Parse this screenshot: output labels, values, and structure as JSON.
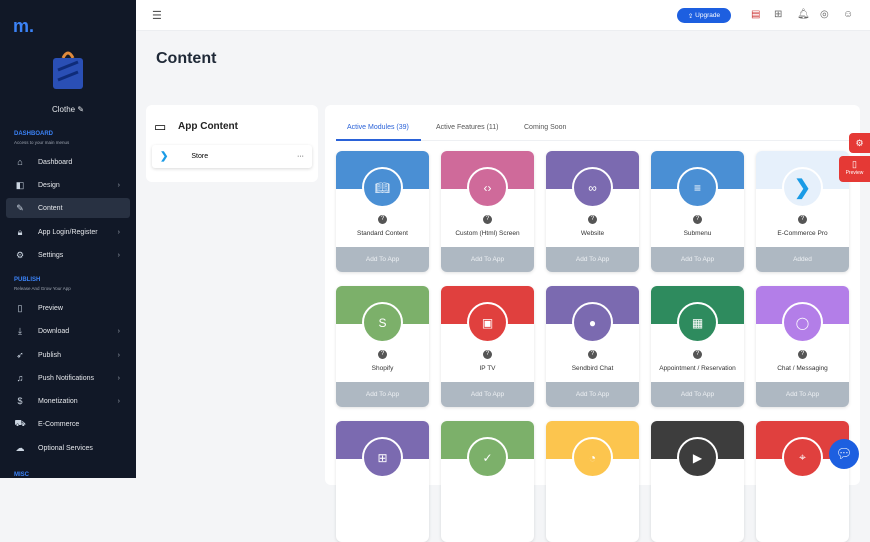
{
  "sidebar": {
    "app_name": "Clothe",
    "sections": [
      {
        "title": "DASHBOARD",
        "subtitle": "Access to your main menus"
      },
      {
        "title": "PUBLISH",
        "subtitle": "Release And Grow Your App"
      },
      {
        "title": "MISC"
      }
    ],
    "items": [
      {
        "label": "Dashboard",
        "icon": "home-icon"
      },
      {
        "label": "Design",
        "icon": "design-icon",
        "chevron": true
      },
      {
        "label": "Content",
        "icon": "edit-icon",
        "active": true
      },
      {
        "label": "App Login/Register",
        "icon": "lock-icon",
        "chevron": true
      },
      {
        "label": "Settings",
        "icon": "gear-icon",
        "chevron": true
      },
      {
        "label": "Preview",
        "icon": "phone-icon"
      },
      {
        "label": "Download",
        "icon": "download-icon",
        "chevron": true
      },
      {
        "label": "Publish",
        "icon": "rocket-icon",
        "chevron": true
      },
      {
        "label": "Push Notifications",
        "icon": "bell-icon",
        "chevron": true
      },
      {
        "label": "Monetization",
        "icon": "dollar-icon",
        "chevron": true
      },
      {
        "label": "E-Commerce",
        "icon": "cart-icon"
      },
      {
        "label": "Optional Services",
        "icon": "services-icon"
      }
    ]
  },
  "header": {
    "upgrade": "Upgrade"
  },
  "page": {
    "title": "Content"
  },
  "left_panel": {
    "title": "App Content",
    "store": "Store",
    "more": "···"
  },
  "tabs": [
    {
      "label": "Active Modules (39)"
    },
    {
      "label": "Active Features (11)"
    },
    {
      "label": "Coming Soon"
    }
  ],
  "floating": {
    "preview": "Preview"
  },
  "cards": [
    {
      "name": "Standard Content",
      "button": "Add To App",
      "color": "#4a8fd4",
      "icon": "book-icon"
    },
    {
      "name": "Custom (Html) Screen",
      "button": "Add To App",
      "color": "#cf6a9a",
      "icon": "code-icon"
    },
    {
      "name": "Website",
      "button": "Add To App",
      "color": "#7b6ab0",
      "icon": "link-icon"
    },
    {
      "name": "Submenu",
      "button": "Add To App",
      "color": "#4a8fd4",
      "icon": "menu-icon"
    },
    {
      "name": "E-Commerce Pro",
      "button": "Added",
      "color": "#e6f0fb",
      "icon": "ecommerce-pro-icon"
    },
    {
      "name": "Shopify",
      "button": "Add To App",
      "color": "#7cb06a",
      "icon": "shopify-icon"
    },
    {
      "name": "IP TV",
      "button": "Add To App",
      "color": "#e0403e",
      "icon": "tv-icon"
    },
    {
      "name": "Sendbird Chat",
      "button": "Add To App",
      "color": "#7b6ab0",
      "icon": "sendbird-icon"
    },
    {
      "name": "Appointment / Reservation",
      "button": "Add To App",
      "color": "#2e8b5e",
      "icon": "calendar-icon"
    },
    {
      "name": "Chat / Messaging",
      "button": "Add To App",
      "color": "#b37ee8",
      "icon": "chat-icon"
    },
    {
      "color": "#7b6ab0",
      "icon": "grid-icon"
    },
    {
      "color": "#7cb06a",
      "icon": "check-icon"
    },
    {
      "color": "#fcc54e",
      "icon": "rss-icon"
    },
    {
      "color": "#3d3d3d",
      "icon": "youtube-icon"
    },
    {
      "color": "#e0403e",
      "icon": "location-icon"
    }
  ]
}
